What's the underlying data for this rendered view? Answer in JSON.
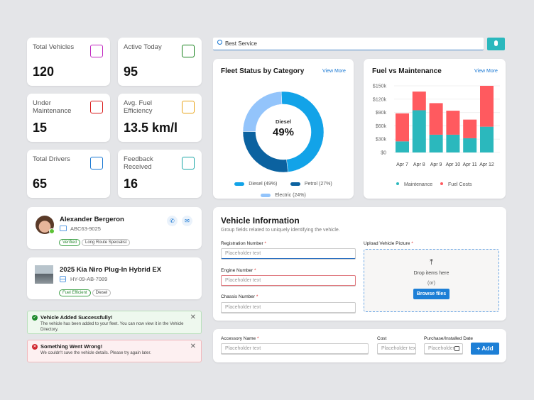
{
  "stats": [
    {
      "label": "Total Vehicles",
      "value": "120",
      "icon": "cars-icon",
      "color": "#c026c0"
    },
    {
      "label": "Active Today",
      "value": "95",
      "icon": "taxi-icon",
      "color": "#15801a"
    },
    {
      "label": "Under Maintenance",
      "value": "15",
      "icon": "car-repair-icon",
      "color": "#d91c1c"
    },
    {
      "label": "Avg. Fuel Efficiency",
      "value": "13.5 km/l",
      "icon": "fuel-pump-icon",
      "color": "#e8a317"
    },
    {
      "label": "Total Drivers",
      "value": "65",
      "icon": "driver-icon",
      "color": "#1877d2"
    },
    {
      "label": "Feedback Received",
      "value": "16",
      "icon": "feedback-icon",
      "color": "#1aa6a6"
    }
  ],
  "driver": {
    "name": "Alexander Bergeron",
    "id": "ABC63-9025",
    "tags": [
      "Verified",
      "Long Route Specialist"
    ],
    "status": "online"
  },
  "vehicle": {
    "name": "2025 Kia Niro Plug-In Hybrid EX",
    "plate": "HY-09-AB-7089",
    "tags": [
      "Fuel Efficient",
      "Diesel"
    ]
  },
  "alerts": {
    "success": {
      "title": "Vehicle Added Successfully!",
      "body": "The vehicle has been added to your fleet. You can now view it in the Vehicle Directory."
    },
    "error": {
      "title": "Something Went Wrong!",
      "body": "We couldn't save the vehicle details. Please try again later."
    }
  },
  "search": {
    "value": "Best Service"
  },
  "fleet": {
    "title": "Fleet Status by Category",
    "view_more": "View More",
    "center_label": "Diesel",
    "center_value": "49%"
  },
  "fuel": {
    "title": "Fuel vs Maintenance",
    "view_more": "View More"
  },
  "chart_data": [
    {
      "type": "pie",
      "title": "Fleet Status by Category",
      "categories": [
        "Diesel",
        "Petrol",
        "Electric"
      ],
      "values": [
        49,
        27,
        24
      ],
      "legend": [
        "Diesel (49%)",
        "Petrol (27%)",
        "Electric (24%)"
      ],
      "colors": [
        "#12a3e8",
        "#0b62a0",
        "#93c4fb"
      ]
    },
    {
      "type": "bar",
      "stacked": true,
      "title": "Fuel vs Maintenance",
      "categories": [
        "Apr 7",
        "Apr 8",
        "Apr 9",
        "Apr 10",
        "Apr 11",
        "Apr 12"
      ],
      "series": [
        {
          "name": "Maintenance",
          "values": [
            25,
            95,
            40,
            40,
            32,
            58
          ],
          "color": "#2bb8bd"
        },
        {
          "name": "Fuel Costs",
          "values": [
            63,
            42,
            71,
            54,
            42,
            92
          ],
          "color": "#ff5a5f"
        }
      ],
      "yticks": [
        "$0",
        "$30k",
        "$60k",
        "$90k",
        "$120k",
        "$150k"
      ],
      "ylim": [
        0,
        150
      ],
      "legend": "bottom",
      "grid": true
    }
  ],
  "form": {
    "title": "Vehicle Information",
    "subtitle": "Group fields related to uniquely identifying the vehicle.",
    "reg_label": "Registration Number",
    "engine_label": "Engine Number",
    "chassis_label": "Chassis Number",
    "upload_label": "Upload Vehicle Picture",
    "required": "*",
    "placeholder": "Placeholder text",
    "drop": "Drop items here",
    "or": "(or)",
    "browse": "Browse files"
  },
  "accessory": {
    "name_label": "Accessory Name",
    "cost_label": "Cost",
    "date_label": "Purchase/Installed Date",
    "name_ph": "Placeholder text",
    "cost_ph": "Placeholder text",
    "date_ph": "Placeholder",
    "add": "+ Add",
    "required": "*"
  }
}
